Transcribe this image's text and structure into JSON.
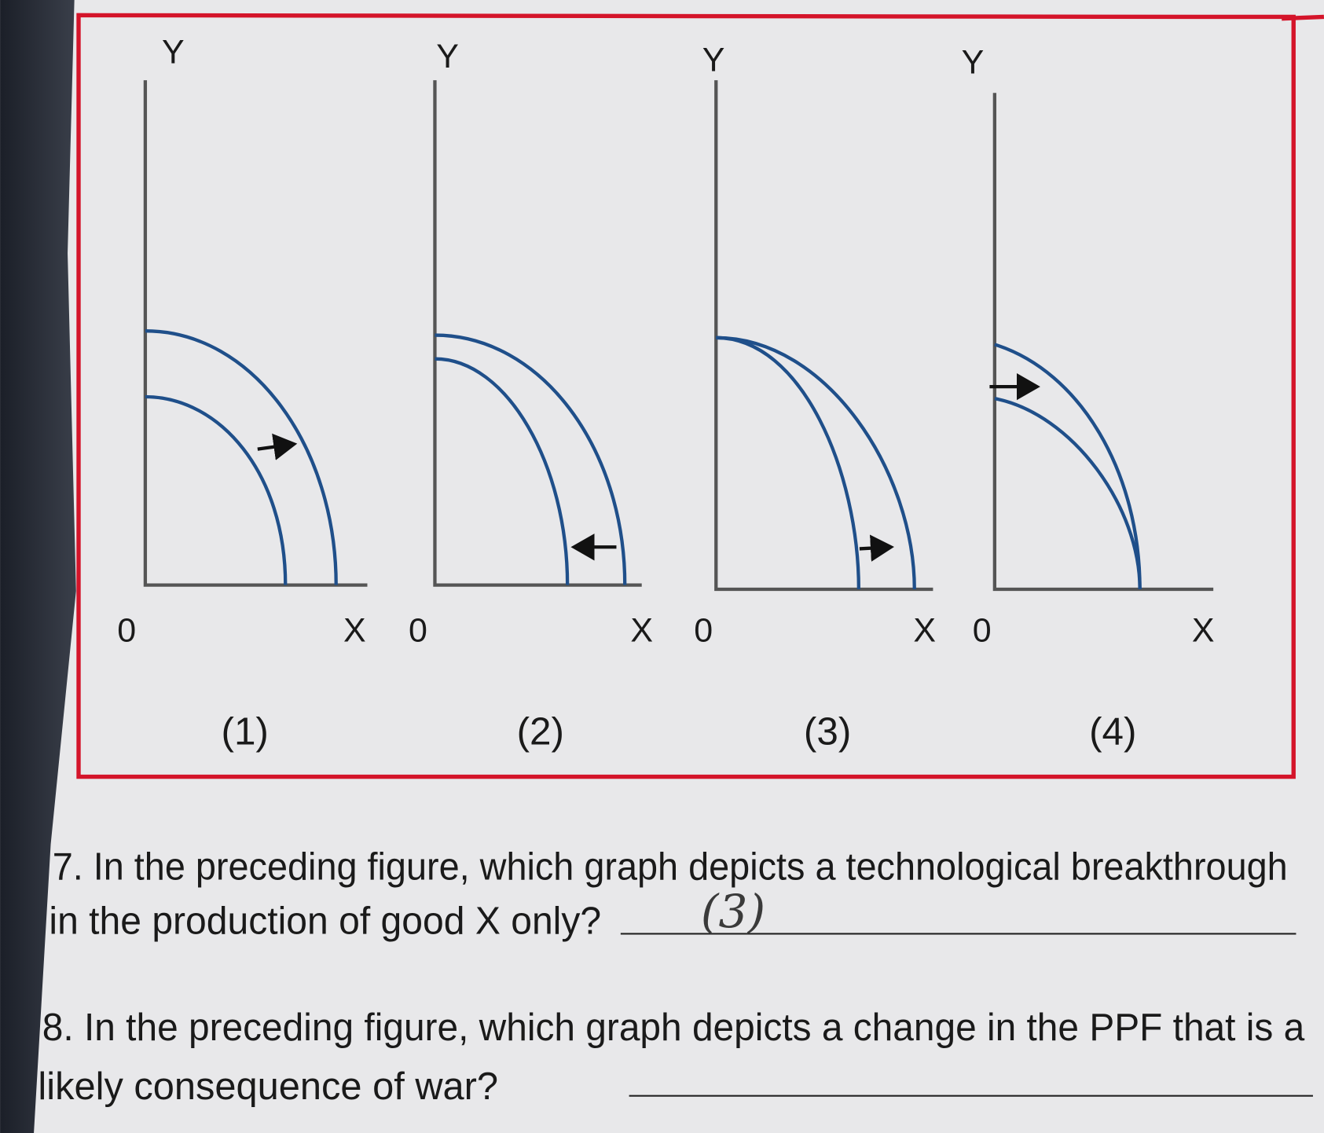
{
  "figure": {
    "panels": [
      {
        "y_label": "Y",
        "x_label": "X",
        "origin": "0",
        "caption": "(1)"
      },
      {
        "y_label": "Y",
        "x_label": "X",
        "origin": "0",
        "caption": "(2)"
      },
      {
        "y_label": "Y",
        "x_label": "X",
        "origin": "0",
        "caption": "(3)"
      },
      {
        "y_label": "Y",
        "x_label": "X",
        "origin": "0",
        "caption": "(4)"
      }
    ]
  },
  "questions": [
    {
      "text_lines": [
        "7. In the preceding figure, which graph depicts a technological breakthrough",
        "in the production of good X only?"
      ],
      "answer": "(3)"
    },
    {
      "text_lines": [
        "8. In the preceding figure, which graph depicts a change in the PPF that is a",
        "likely consequence of war?"
      ]
    }
  ]
}
